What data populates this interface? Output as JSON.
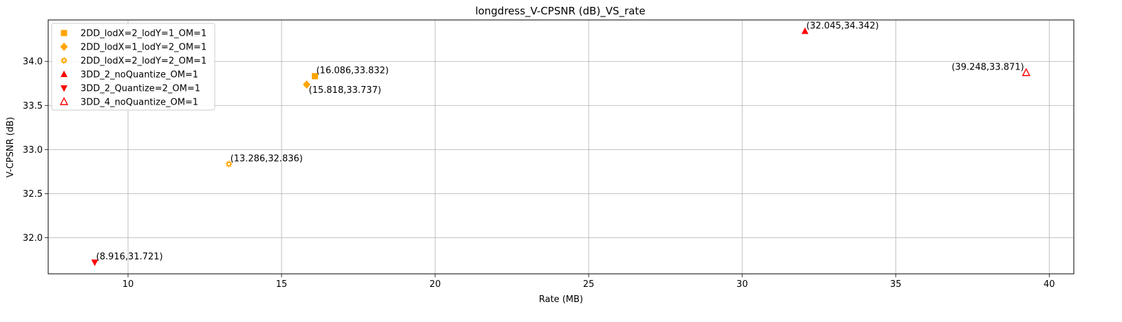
{
  "chart_data": {
    "type": "scatter",
    "title": "longdress_V-CPSNR (dB)_VS_rate",
    "xlabel": "Rate (MB)",
    "ylabel": "V-CPSNR (dB)",
    "xlim": [
      7.4,
      40.8
    ],
    "ylim": [
      31.59,
      34.47
    ],
    "xticks": [
      10,
      15,
      20,
      25,
      30,
      35,
      40
    ],
    "yticks": [
      32.0,
      32.5,
      33.0,
      33.5,
      34.0
    ],
    "xtick_labels": [
      "10",
      "15",
      "20",
      "25",
      "30",
      "35",
      "40"
    ],
    "ytick_labels": [
      "32.0",
      "32.5",
      "33.0",
      "33.5",
      "34.0"
    ],
    "grid": true,
    "legend_position": "top-left",
    "series": [
      {
        "name": "2DD_lodX=2_lodY=1_OM=1",
        "marker": "square",
        "color": "#FFA500",
        "filled": true,
        "points": [
          {
            "x": 16.086,
            "y": 33.832,
            "label": "(16.086,33.832)",
            "label_pos": "above-right"
          }
        ]
      },
      {
        "name": "2DD_lodX=1_lodY=2_OM=1",
        "marker": "diamond",
        "color": "#FFA500",
        "filled": true,
        "points": [
          {
            "x": 15.818,
            "y": 33.737,
            "label": "(15.818,33.737)",
            "label_pos": "below-right"
          }
        ]
      },
      {
        "name": "2DD_lodX=2_lodY=2_OM=1",
        "marker": "gear",
        "color": "#FFA500",
        "filled": false,
        "points": [
          {
            "x": 13.286,
            "y": 32.836,
            "label": "(13.286,32.836)",
            "label_pos": "above-right"
          }
        ]
      },
      {
        "name": "3DD_2_noQuantize_OM=1",
        "marker": "triangle-up",
        "color": "#FF0000",
        "filled": true,
        "points": [
          {
            "x": 32.045,
            "y": 34.342,
            "label": "(32.045,34.342)",
            "label_pos": "above-right"
          }
        ]
      },
      {
        "name": "3DD_2_Quantize=2_OM=1",
        "marker": "triangle-down",
        "color": "#FF0000",
        "filled": true,
        "points": [
          {
            "x": 8.916,
            "y": 31.721,
            "label": "(8.916,31.721)",
            "label_pos": "above-right"
          }
        ]
      },
      {
        "name": "3DD_4_noQuantize_OM=1",
        "marker": "triangle-up",
        "color": "#FF0000",
        "filled": false,
        "points": [
          {
            "x": 39.248,
            "y": 33.871,
            "label": "(39.248,33.871)",
            "label_pos": "above-left"
          }
        ]
      }
    ]
  }
}
